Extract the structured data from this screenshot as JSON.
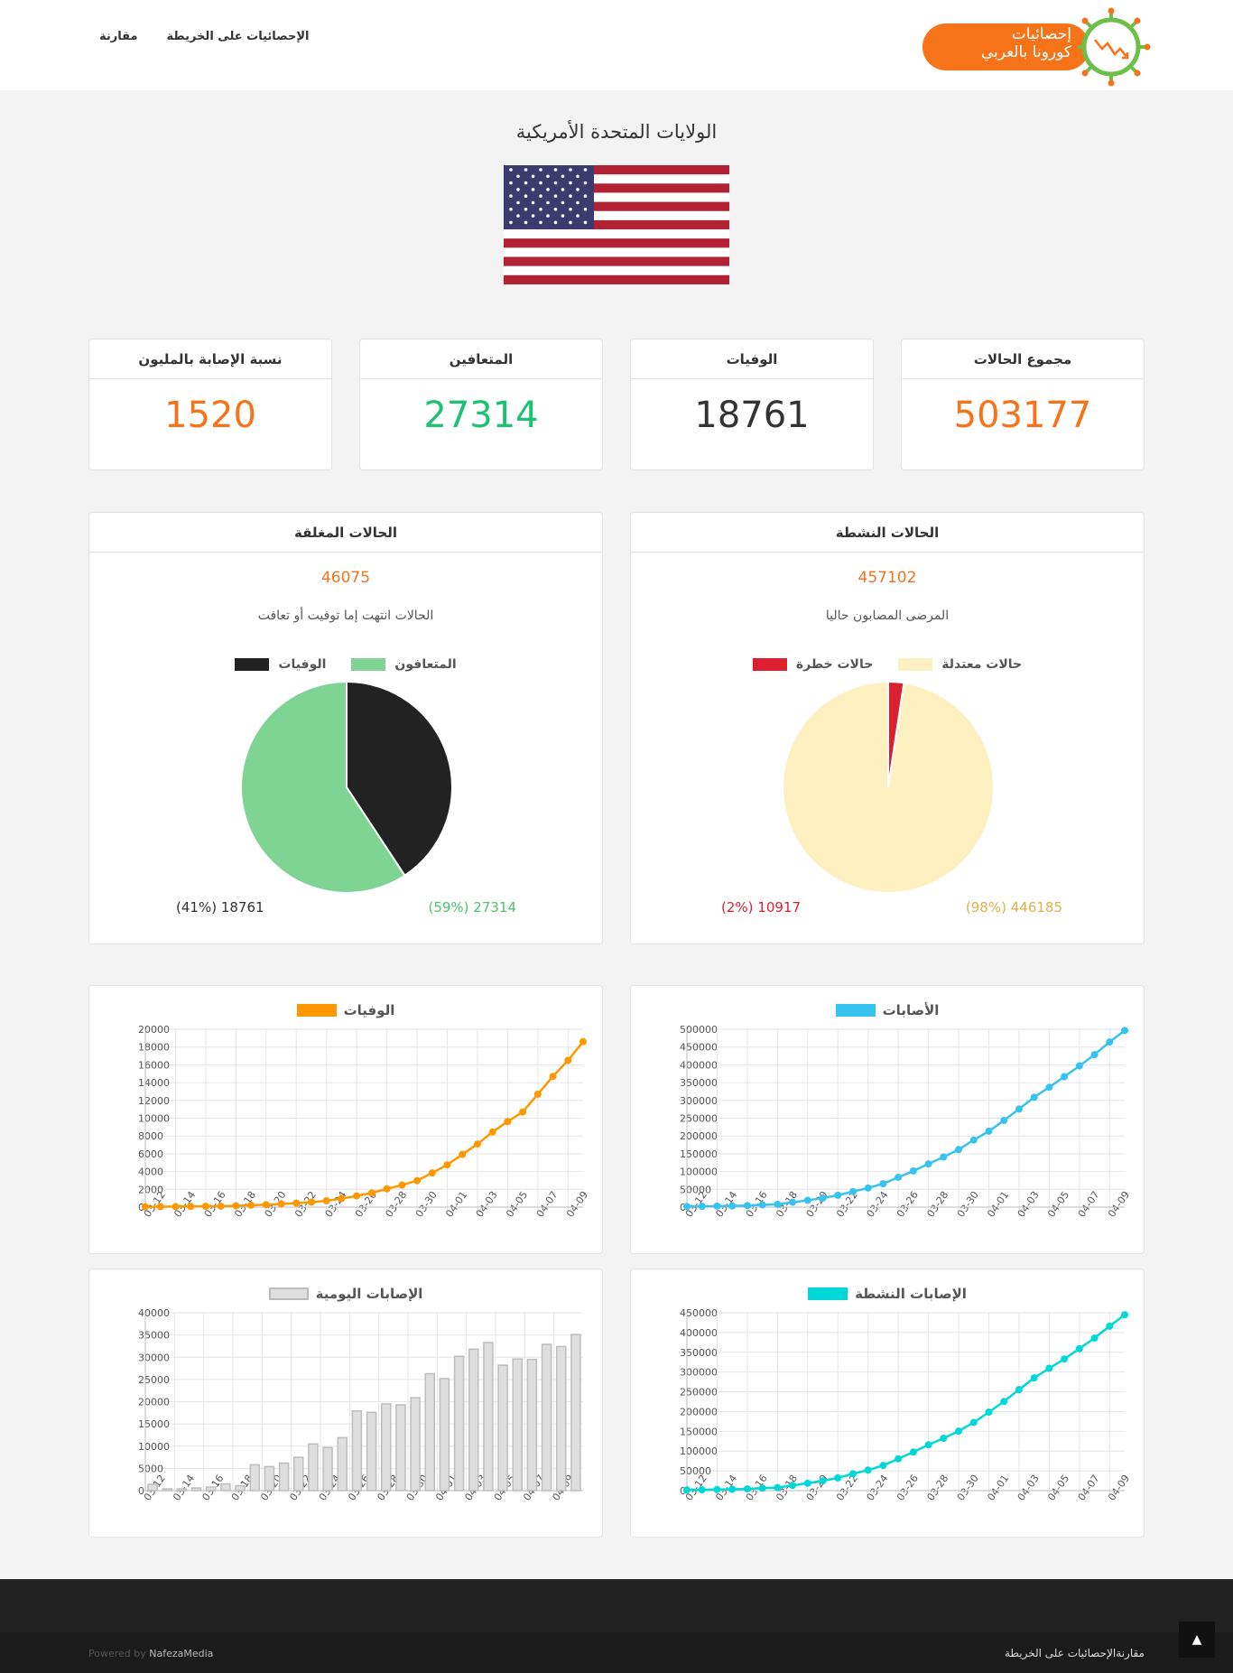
{
  "header": {
    "logo_line1": "إحصائيات",
    "logo_line2": "كورونا بالعربي",
    "nav": [
      {
        "label": "مقارنة"
      },
      {
        "label": "الإحصائيات على الخريطة"
      }
    ]
  },
  "country": {
    "name": "الولايات المتحدة الأمريكية"
  },
  "stats": [
    {
      "label": "مجموع الحالات",
      "value": "503177",
      "color": "#f7731a"
    },
    {
      "label": "الوفيات",
      "value": "18761",
      "color": "#333333"
    },
    {
      "label": "المتعافين",
      "value": "27314",
      "color": "#1bc271"
    },
    {
      "label": "نسبة الإصابة بالمليون",
      "value": "1520",
      "color": "#f7731a"
    }
  ],
  "active_cases": {
    "title": "الحالات النشطة",
    "total": "457102",
    "desc": "المرضى المصابون حاليا",
    "legend": [
      {
        "label": "حالات معتدلة",
        "color": "#fff0c1"
      },
      {
        "label": "حالات خطرة",
        "color": "#dc1f2e"
      }
    ],
    "mild_label": "446185 (98%)",
    "serious_label": "10917 (2%)",
    "mild_value": 446185,
    "serious_value": 10917,
    "mild_text_color": "#e0b14b",
    "serious_text_color": "#dc1f2e"
  },
  "closed_cases": {
    "title": "الحالات المغلقة",
    "total": "46075",
    "desc": "الحالات انتهت إما توفيت أو تعافت",
    "legend": [
      {
        "label": "المتعافون",
        "color": "#7fd494"
      },
      {
        "label": "الوفيات",
        "color": "#222222"
      }
    ],
    "recovered_label": "27314 (59%)",
    "deaths_label": "18761 (41%)",
    "recovered_value": 27314,
    "deaths_value": 18761,
    "recovered_text_color": "#4cc46b",
    "deaths_text_color": "#333333"
  },
  "chart_data": [
    {
      "id": "cases",
      "type": "line",
      "title": "الأصابات",
      "color": "#36c3f0",
      "ylim": [
        0,
        500000
      ],
      "yticks": [
        "500000",
        "450000",
        "400000",
        "350000",
        "300000",
        "250000",
        "200000",
        "150000",
        "100000",
        "50000",
        "0"
      ],
      "xticks": [
        "03-12",
        "03-14",
        "03-16",
        "03-18",
        "03-20",
        "03-22",
        "03-24",
        "03-26",
        "03-28",
        "03-30",
        "04-01",
        "04-03",
        "04-05",
        "04-07",
        "04-09"
      ],
      "categories": [
        "03-12",
        "03-13",
        "03-14",
        "03-15",
        "03-16",
        "03-17",
        "03-18",
        "03-19",
        "03-20",
        "03-21",
        "03-22",
        "03-23",
        "03-24",
        "03-25",
        "03-26",
        "03-27",
        "03-28",
        "03-29",
        "03-30",
        "03-31",
        "04-01",
        "04-02",
        "04-03",
        "04-04",
        "04-05",
        "04-06",
        "04-07",
        "04-08",
        "04-09",
        "04-10"
      ],
      "values": [
        1700,
        2200,
        2900,
        3500,
        4600,
        6400,
        7800,
        13700,
        19100,
        25500,
        33300,
        43800,
        53700,
        65800,
        83800,
        101700,
        121500,
        140900,
        161800,
        188500,
        213400,
        243600,
        275600,
        308800,
        337000,
        366600,
        397000,
        428600,
        464300,
        496500
      ]
    },
    {
      "id": "deaths",
      "type": "line",
      "title": "الوفيات",
      "color": "#ff9800",
      "ylim": [
        0,
        20000
      ],
      "yticks": [
        "20000",
        "18000",
        "16000",
        "14000",
        "12000",
        "10000",
        "8000",
        "6000",
        "4000",
        "2000",
        "0"
      ],
      "xticks": [
        "03-12",
        "03-14",
        "03-16",
        "03-18",
        "03-20",
        "03-22",
        "03-24",
        "03-26",
        "03-28",
        "03-30",
        "04-01",
        "04-03",
        "04-05",
        "04-07",
        "04-09"
      ],
      "categories": [
        "03-12",
        "03-13",
        "03-14",
        "03-15",
        "03-16",
        "03-17",
        "03-18",
        "03-19",
        "03-20",
        "03-21",
        "03-22",
        "03-23",
        "03-24",
        "03-25",
        "03-26",
        "03-27",
        "03-28",
        "03-29",
        "03-30",
        "03-31",
        "04-01",
        "04-02",
        "04-03",
        "04-04",
        "04-05",
        "04-06",
        "04-07",
        "04-08",
        "04-09",
        "04-10"
      ],
      "values": [
        40,
        50,
        60,
        70,
        90,
        110,
        150,
        210,
        270,
        350,
        450,
        560,
        710,
        960,
        1260,
        1600,
        2050,
        2480,
        2980,
        3840,
        4760,
        5930,
        7090,
        8450,
        9620,
        10700,
        12700,
        14700,
        16500,
        18600
      ]
    },
    {
      "id": "active",
      "type": "line",
      "title": "الإصابات النشطة",
      "color": "#00d8d8",
      "ylim": [
        0,
        450000
      ],
      "yticks": [
        "450000",
        "400000",
        "350000",
        "300000",
        "250000",
        "200000",
        "150000",
        "100000",
        "50000",
        "0"
      ],
      "xticks": [
        "03-12",
        "03-14",
        "03-16",
        "03-18",
        "03-20",
        "03-22",
        "03-24",
        "03-26",
        "03-28",
        "03-30",
        "04-01",
        "04-03",
        "04-05",
        "04-07",
        "04-09"
      ],
      "categories": [
        "03-12",
        "03-13",
        "03-14",
        "03-15",
        "03-16",
        "03-17",
        "03-18",
        "03-19",
        "03-20",
        "03-21",
        "03-22",
        "03-23",
        "03-24",
        "03-25",
        "03-26",
        "03-27",
        "03-28",
        "03-29",
        "03-30",
        "03-31",
        "04-01",
        "04-02",
        "04-03",
        "04-04",
        "04-05",
        "04-06",
        "04-07",
        "04-08",
        "04-09",
        "04-10"
      ],
      "values": [
        1600,
        2100,
        2800,
        3400,
        4400,
        6200,
        7600,
        13300,
        18600,
        24800,
        32300,
        42500,
        52000,
        63600,
        80600,
        97600,
        116000,
        132500,
        150500,
        172500,
        198500,
        225500,
        255500,
        285000,
        309500,
        333000,
        359000,
        386000,
        416000,
        445000
      ]
    },
    {
      "id": "daily",
      "type": "bar",
      "title": "الإصابات اليومية",
      "color": "#dedede",
      "ylim": [
        0,
        40000
      ],
      "yticks": [
        "40000",
        "35000",
        "30000",
        "25000",
        "20000",
        "15000",
        "10000",
        "5000",
        "0"
      ],
      "xticks": [
        "03-12",
        "03-14",
        "03-16",
        "03-18",
        "03-20",
        "03-22",
        "03-24",
        "03-26",
        "03-28",
        "03-30",
        "04-01",
        "04-03",
        "04-05",
        "04-07",
        "04-09"
      ],
      "categories": [
        "03-12",
        "03-13",
        "03-14",
        "03-15",
        "03-16",
        "03-17",
        "03-18",
        "03-19",
        "03-20",
        "03-21",
        "03-22",
        "03-23",
        "03-24",
        "03-25",
        "03-26",
        "03-27",
        "03-28",
        "03-29",
        "03-30",
        "03-31",
        "04-01",
        "04-02",
        "04-03",
        "04-04",
        "04-05",
        "04-06",
        "04-07",
        "04-08",
        "04-09",
        "04-10"
      ],
      "values": [
        1400,
        400,
        400,
        600,
        800,
        1500,
        1100,
        5800,
        5400,
        6200,
        7500,
        10500,
        9700,
        11900,
        17900,
        17600,
        19500,
        19300,
        20900,
        26300,
        25200,
        30200,
        31800,
        33300,
        28200,
        29600,
        29500,
        32900,
        32400,
        35100
      ]
    }
  ],
  "footer": {
    "link1": "مقارنة",
    "link2": "الإحصائيات على الخريطة",
    "powered_text": "Powered by",
    "powered_brand": "NafezaMedia",
    "to_top_icon": "chevron-up-icon"
  }
}
